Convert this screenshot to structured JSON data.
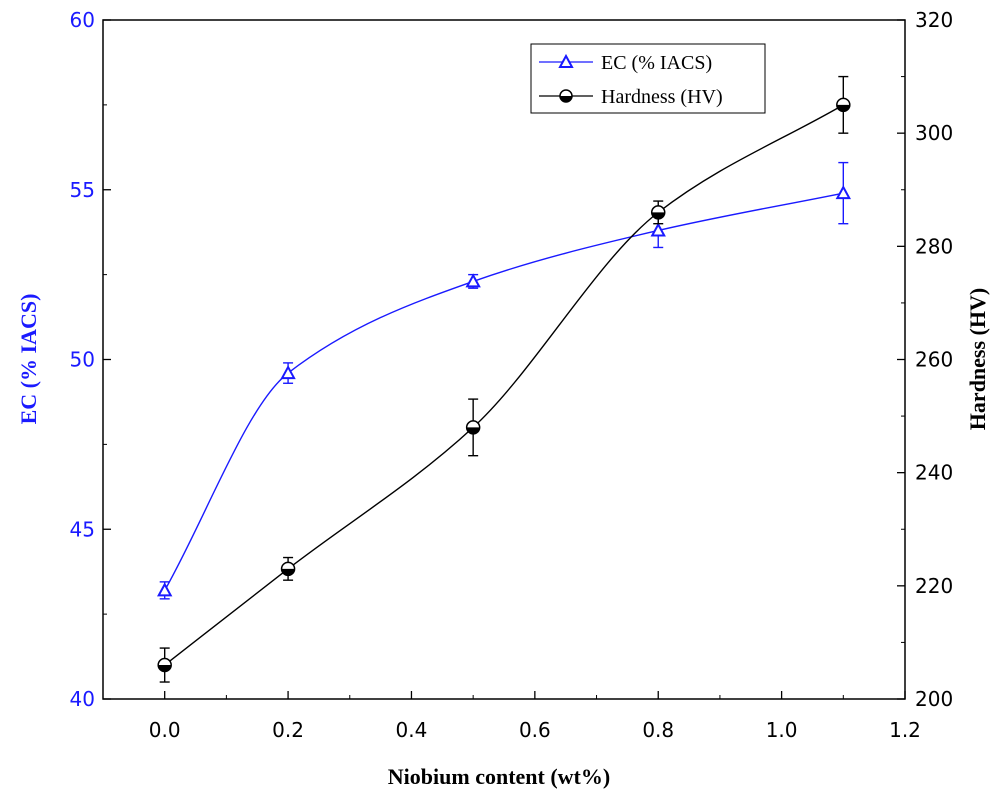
{
  "chart_data": {
    "type": "line",
    "x": [
      0.0,
      0.2,
      0.5,
      0.8,
      1.1
    ],
    "xlabel": "Niobium content (wt%)",
    "xlim": [
      -0.1,
      1.2
    ],
    "xticks": [
      0.0,
      0.2,
      0.4,
      0.6,
      0.8,
      1.0,
      1.2
    ],
    "xtick_labels": [
      "0.0",
      "0.2",
      "0.4",
      "0.6",
      "0.8",
      "1.0",
      "1.2"
    ],
    "y_left": {
      "label": "EC (% IACS)",
      "lim": [
        40,
        60
      ],
      "ticks": [
        40,
        45,
        50,
        55,
        60
      ],
      "tick_labels": [
        "40",
        "45",
        "50",
        "55",
        "60"
      ],
      "color": "#1a1aff"
    },
    "y_right": {
      "label": "Hardness (HV)",
      "lim": [
        200,
        320
      ],
      "ticks": [
        200,
        220,
        240,
        260,
        280,
        300,
        320
      ],
      "tick_labels": [
        "200",
        "220",
        "240",
        "260",
        "280",
        "300",
        "320"
      ],
      "color": "#000000"
    },
    "series": [
      {
        "name": "EC (% IACS)",
        "axis": "left",
        "marker": "triangle",
        "color": "#1a1aff",
        "values": [
          43.2,
          49.6,
          52.3,
          53.8,
          54.9
        ],
        "errors": [
          0.25,
          0.3,
          0.2,
          0.5,
          0.9
        ]
      },
      {
        "name": "Hardness (HV)",
        "axis": "right",
        "marker": "half-filled-circle",
        "color": "#000000",
        "values": [
          206,
          223,
          248,
          286,
          305
        ],
        "errors": [
          3,
          2,
          5,
          2,
          5
        ]
      }
    ],
    "legend_position": "top-right",
    "grid": false
  }
}
